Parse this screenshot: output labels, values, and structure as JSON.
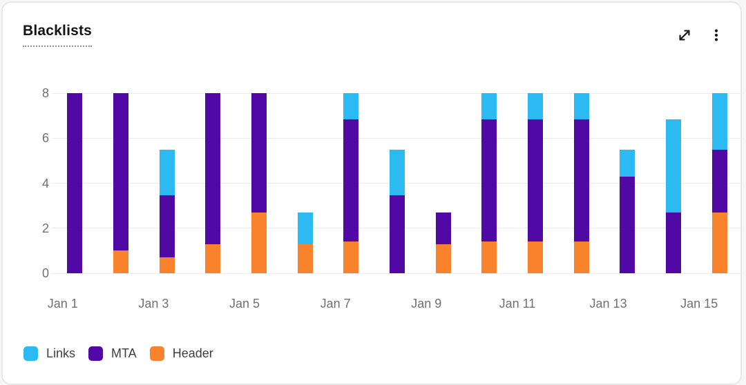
{
  "header": {
    "title": "Blacklists",
    "actions": {
      "expand_icon": "diagonal-expand-arrows",
      "menu_icon": "vertical-kebab-dots"
    }
  },
  "colors": {
    "links": "#2CBAF3",
    "mta": "#5109A6",
    "header_series": "#F9822D",
    "grid": "#E9E9EE",
    "axis_text": "#6F6F6F",
    "title_text": "#141414",
    "card_border": "#E7E7E9",
    "page_background": "#F6F6F7",
    "card_background": "#FFFFFF"
  },
  "chart_data": {
    "type": "bar",
    "stacked": true,
    "title": "Blacklists",
    "xlabel": "",
    "ylabel": "",
    "ylim": [
      0,
      8
    ],
    "yticks": [
      0,
      2,
      4,
      6,
      8
    ],
    "grid": "horizontal",
    "legend_position": "bottom-left",
    "categories": [
      "Jan 1",
      "Jan 2",
      "Jan 3",
      "Jan 4",
      "Jan 5",
      "Jan 6",
      "Jan 7",
      "Jan 8",
      "Jan 9",
      "Jan 10",
      "Jan 11",
      "Jan 12",
      "Jan 13",
      "Jan 14",
      "Jan 15"
    ],
    "x_tick_labels": [
      "Jan 1",
      "Jan 3",
      "Jan 5",
      "Jan 7",
      "Jan 9",
      "Jan 11",
      "Jan 13",
      "Jan 15"
    ],
    "stack_order_bottom_to_top": [
      "Header",
      "MTA",
      "Links"
    ],
    "series": [
      {
        "name": "Links",
        "color": "#2CBAF3",
        "values": [
          0,
          0,
          2.05,
          0,
          0,
          1.4,
          1.15,
          2.05,
          0,
          1.15,
          1.15,
          1.15,
          1.2,
          4.15,
          2.5
        ]
      },
      {
        "name": "MTA",
        "color": "#5109A6",
        "values": [
          8,
          7,
          2.75,
          6.7,
          5.3,
          0,
          5.45,
          3.45,
          1.4,
          5.45,
          5.45,
          5.45,
          4.3,
          2.7,
          2.8
        ]
      },
      {
        "name": "Header",
        "color": "#F9822D",
        "values": [
          0,
          1,
          0.7,
          1.3,
          2.7,
          1.3,
          1.4,
          0,
          1.3,
          1.4,
          1.4,
          1.4,
          0,
          0,
          2.7
        ]
      }
    ]
  }
}
